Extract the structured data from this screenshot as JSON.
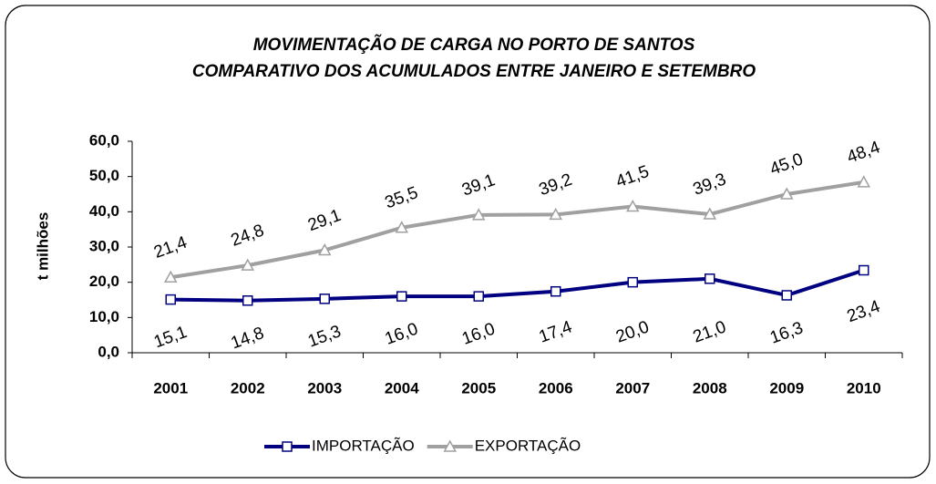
{
  "chart_data": {
    "type": "line",
    "title": "MOVIMENTAÇÃO DE CARGA NO PORTO DE SANTOS",
    "subtitle": "COMPARATIVO DOS ACUMULADOS ENTRE JANEIRO E SETEMBRO",
    "y_label": "t milhões",
    "categories": [
      "2001",
      "2002",
      "2003",
      "2004",
      "2005",
      "2006",
      "2007",
      "2008",
      "2009",
      "2010"
    ],
    "series": [
      {
        "name": "IMPORTAÇÃO",
        "color": "#000080",
        "marker": "square",
        "values": [
          15.1,
          14.8,
          15.3,
          16.0,
          16.0,
          17.4,
          20.0,
          21.0,
          16.3,
          23.4
        ],
        "value_labels": [
          "15,1",
          "14,8",
          "15,3",
          "16,0",
          "16,0",
          "17,4",
          "20,0",
          "21,0",
          "16,3",
          "23,4"
        ]
      },
      {
        "name": "EXPORTAÇÃO",
        "color": "#a0a0a0",
        "marker": "triangle",
        "values": [
          21.4,
          24.8,
          29.1,
          35.5,
          39.1,
          39.2,
          41.5,
          39.3,
          45.0,
          48.4
        ],
        "value_labels": [
          "21,4",
          "24,8",
          "29,1",
          "35,5",
          "39,1",
          "39,2",
          "41,5",
          "39,3",
          "45,0",
          "48,4"
        ]
      }
    ],
    "ylim": [
      0,
      60
    ],
    "yticks": [
      {
        "value": 0,
        "label": "0,0"
      },
      {
        "value": 10,
        "label": "10,0"
      },
      {
        "value": 20,
        "label": "20,0"
      },
      {
        "value": 30,
        "label": "30,0"
      },
      {
        "value": 40,
        "label": "40,0"
      },
      {
        "value": 50,
        "label": "50,0"
      },
      {
        "value": 60,
        "label": "60,0"
      }
    ],
    "legend": "bottom"
  }
}
